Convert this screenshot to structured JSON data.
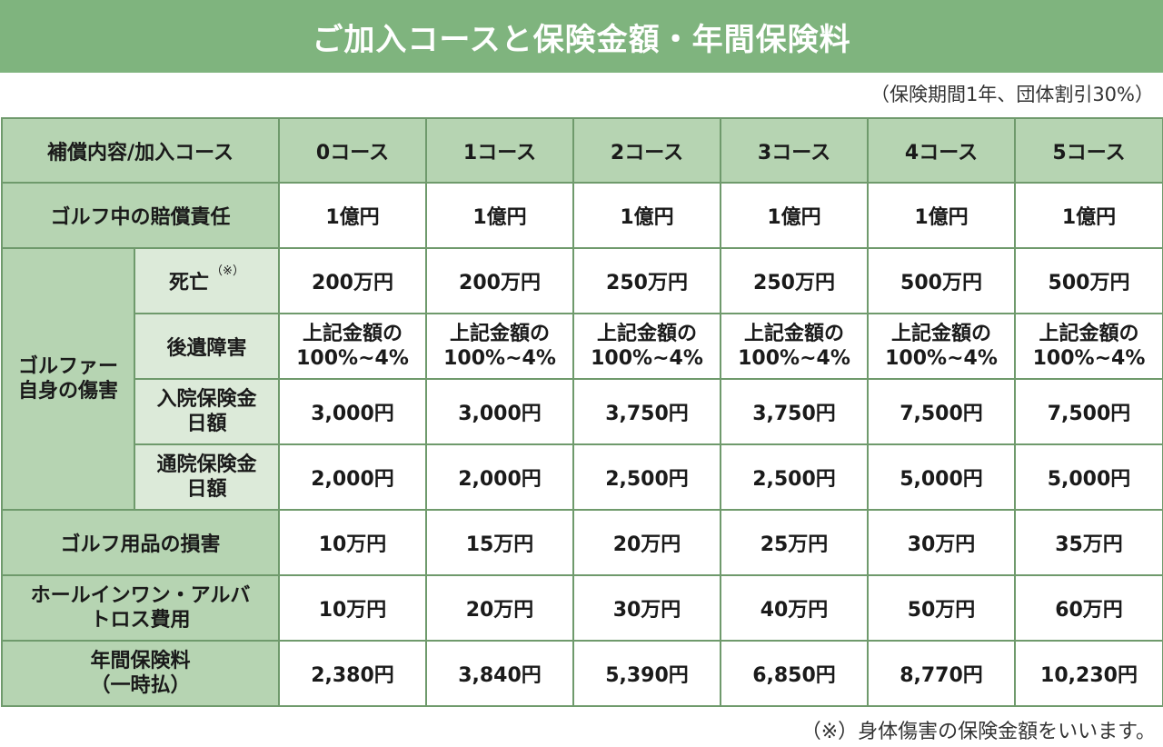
{
  "title": "ご加入コースと保険金額・年間保険料",
  "note": "（保険期間1年、団体割引30%）",
  "header": {
    "label": "補償内容/加入コース",
    "courses": [
      "0コース",
      "1コース",
      "2コース",
      "3コース",
      "4コース",
      "5コース"
    ]
  },
  "rows": {
    "liability": {
      "label": "ゴルフ中の賠償責任",
      "values": [
        "1億円",
        "1億円",
        "1億円",
        "1億円",
        "1億円",
        "1億円"
      ]
    },
    "injury_group": {
      "line1": "ゴルファー",
      "line2": "自身の傷害"
    },
    "death": {
      "label": "死亡",
      "mark": "（※）",
      "values": [
        "200万円",
        "200万円",
        "250万円",
        "250万円",
        "500万円",
        "500万円"
      ]
    },
    "disability": {
      "label": "後遺障害",
      "line1": "上記金額の",
      "line2": "100%~4%"
    },
    "hospital": {
      "line1": "入院保険金",
      "line2": "日額",
      "values": [
        "3,000円",
        "3,000円",
        "3,750円",
        "3,750円",
        "7,500円",
        "7,500円"
      ]
    },
    "outpatient": {
      "line1": "通院保険金",
      "line2": "日額",
      "values": [
        "2,000円",
        "2,000円",
        "2,500円",
        "2,500円",
        "5,000円",
        "5,000円"
      ]
    },
    "equipment": {
      "label": "ゴルフ用品の損害",
      "values": [
        "10万円",
        "15万円",
        "20万円",
        "25万円",
        "30万円",
        "35万円"
      ]
    },
    "hole_in_one": {
      "line1": "ホールインワン・アルバ",
      "line2": "トロス費用",
      "values": [
        "10万円",
        "20万円",
        "30万円",
        "40万円",
        "50万円",
        "60万円"
      ]
    },
    "premium": {
      "line1": "年間保険料",
      "line2": "（一時払）",
      "values": [
        "2,380円",
        "3,840円",
        "5,390円",
        "6,850円",
        "8,770円",
        "10,230円"
      ]
    }
  },
  "footnote": "（※）身体傷害の保険金額をいいます。",
  "colors": {
    "title_bg": "#7fb47e",
    "header_bg": "#b6d4b2",
    "label_bg": "#dcead9",
    "border": "#6f9a6c"
  }
}
